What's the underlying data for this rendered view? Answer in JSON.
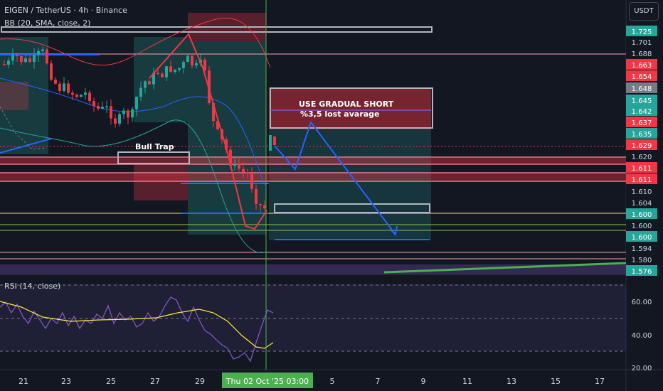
{
  "header": {
    "symbol_line": "EIGEN / TetherUS · 4h · Binance",
    "indicator_line": "BB (20, SMA, close, 2)",
    "currency_button": "USDT"
  },
  "rsi": {
    "title": "RSI (14, close)"
  },
  "annotations": {
    "bull_trap": "Bull Trap",
    "short_title": "USE GRADUAL SHORT",
    "short_sub": "%3,5 lost avarage"
  },
  "price_labels": [
    {
      "text": "1.725",
      "bg": "#26a69a",
      "fg": "#ffffff"
    },
    {
      "text": "1.701",
      "bg": "#131722",
      "fg": "#d1d4dc"
    },
    {
      "text": "1.688",
      "bg": "#131722",
      "fg": "#d1d4dc"
    },
    {
      "text": "1.663",
      "bg": "#f23645",
      "fg": "#ffffff"
    },
    {
      "text": "1.654",
      "bg": "#f23645",
      "fg": "#ffffff"
    },
    {
      "text": "1.648",
      "bg": "#787b86",
      "fg": "#ffffff"
    },
    {
      "text": "1.645",
      "bg": "#26a69a",
      "fg": "#ffffff"
    },
    {
      "text": "1.642",
      "bg": "#26a69a",
      "fg": "#ffffff"
    },
    {
      "text": "1.637",
      "bg": "#f23645",
      "fg": "#ffffff"
    },
    {
      "text": "1.635",
      "bg": "#26a69a",
      "fg": "#ffffff"
    },
    {
      "text": "1.629",
      "bg": "#f23645",
      "fg": "#ffffff"
    },
    {
      "text": "1.620",
      "bg": "#131722",
      "fg": "#d1d4dc"
    },
    {
      "text": "1.611",
      "bg": "#f23645",
      "fg": "#ffffff"
    },
    {
      "text": "1.611",
      "bg": "#f23645",
      "fg": "#ffffff"
    },
    {
      "text": "1.610",
      "bg": "#131722",
      "fg": "#d1d4dc"
    },
    {
      "text": "1.604",
      "bg": "#131722",
      "fg": "#d1d4dc"
    },
    {
      "text": "1.600",
      "bg": "#26a69a",
      "fg": "#ffffff"
    },
    {
      "text": "1.600",
      "bg": "#131722",
      "fg": "#d1d4dc"
    },
    {
      "text": "1.600",
      "bg": "#26a69a",
      "fg": "#ffffff"
    },
    {
      "text": "1.594",
      "bg": "#131722",
      "fg": "#d1d4dc"
    },
    {
      "text": "1.580",
      "bg": "#131722",
      "fg": "#d1d4dc"
    },
    {
      "text": "1.576",
      "bg": "#26a69a",
      "fg": "#ffffff"
    }
  ],
  "rsi_labels": [
    "60.00",
    "40.00",
    "20.00"
  ],
  "time_labels": [
    "21",
    "23",
    "25",
    "27",
    "29",
    "5",
    "7",
    "9",
    "11",
    "13",
    "15",
    "17"
  ],
  "crosshair_time": "Thu 02 Oct '25",
  "crosshair_clock": "03:00",
  "colors": {
    "bg": "#131722",
    "up": "#26a69a",
    "down": "#f23645",
    "bb": "#2962ff",
    "crosshair": "#4caf50",
    "rsi": "#7e57c2"
  }
}
